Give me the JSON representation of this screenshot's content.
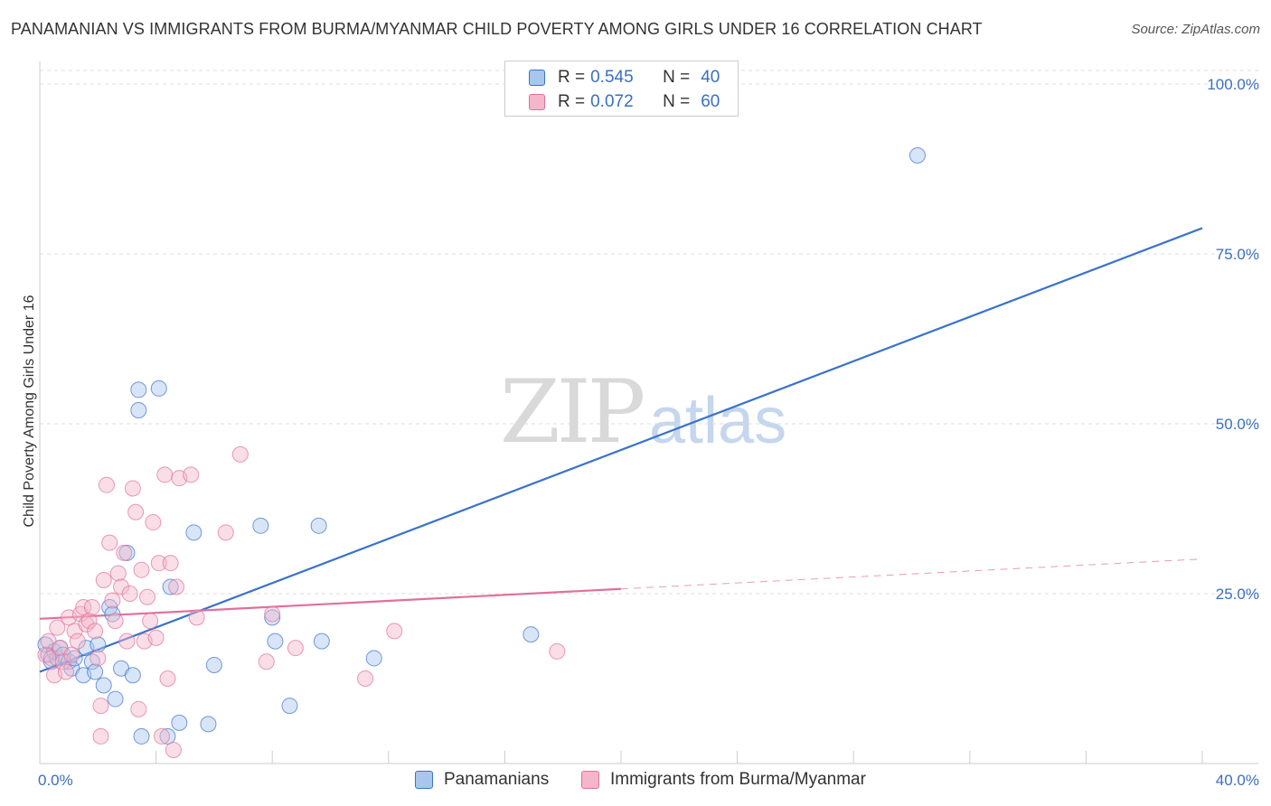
{
  "title": "PANAMANIAN VS IMMIGRANTS FROM BURMA/MYANMAR CHILD POVERTY AMONG GIRLS UNDER 16 CORRELATION CHART",
  "source": "Source: ZipAtlas.com",
  "watermark": {
    "zip": "ZIP",
    "atlas": "atlas"
  },
  "colors": {
    "blue": "#3a72cc",
    "blue_fill": "#a9c6ee",
    "pink": "#e0709a",
    "pink_fill": "#f4b6ca",
    "tick": "#3a6fc0"
  },
  "legend": {
    "r_label": "R =",
    "n_label": "N =",
    "rows": [
      {
        "r": "0.545",
        "n": "40",
        "series": "blue"
      },
      {
        "r": "0.072",
        "n": "60",
        "series": "pink"
      }
    ]
  },
  "bottom_legend": [
    {
      "label": "Panamanians",
      "series": "blue"
    },
    {
      "label": "Immigrants from Burma/Myanmar",
      "series": "pink"
    }
  ],
  "chart_data": {
    "type": "scatter",
    "title": "PANAMANIAN VS IMMIGRANTS FROM BURMA/MYANMAR CHILD POVERTY AMONG GIRLS UNDER 16 CORRELATION CHART",
    "xlabel": "",
    "ylabel": "Child Poverty Among Girls Under 16",
    "xlim": [
      0,
      40
    ],
    "ylim": [
      0,
      102
    ],
    "x_ticks": [
      0,
      40
    ],
    "x_tick_labels": [
      "0.0%",
      "40.0%"
    ],
    "y_ticks": [
      25,
      50,
      75,
      100
    ],
    "y_tick_labels": [
      "25.0%",
      "50.0%",
      "75.0%",
      "100.0%"
    ],
    "grid": true,
    "series": [
      {
        "name": "Panamanians",
        "color": "blue",
        "r": 0.545,
        "n": 40,
        "trend": {
          "x": [
            0,
            40
          ],
          "y": [
            13.5,
            78.8
          ],
          "dashed_from": null
        },
        "points": [
          [
            0.2,
            17.5
          ],
          [
            0.3,
            16.0
          ],
          [
            0.4,
            15.0
          ],
          [
            0.5,
            16.5
          ],
          [
            0.6,
            15.5
          ],
          [
            0.7,
            17.0
          ],
          [
            0.8,
            16.0
          ],
          [
            1.0,
            15.0
          ],
          [
            1.1,
            14.0
          ],
          [
            1.2,
            15.5
          ],
          [
            1.5,
            13.0
          ],
          [
            1.6,
            17.0
          ],
          [
            1.8,
            15.0
          ],
          [
            1.9,
            13.5
          ],
          [
            2.0,
            17.5
          ],
          [
            2.2,
            11.5
          ],
          [
            2.4,
            23.0
          ],
          [
            2.5,
            22.0
          ],
          [
            2.6,
            9.5
          ],
          [
            2.8,
            14.0
          ],
          [
            3.0,
            31.0
          ],
          [
            3.2,
            13.0
          ],
          [
            3.4,
            55.0
          ],
          [
            3.4,
            52.0
          ],
          [
            3.5,
            4.0
          ],
          [
            4.1,
            55.2
          ],
          [
            4.4,
            4.0
          ],
          [
            4.5,
            26.0
          ],
          [
            4.8,
            6.0
          ],
          [
            5.3,
            34.0
          ],
          [
            5.8,
            5.8
          ],
          [
            6.0,
            14.5
          ],
          [
            7.6,
            35.0
          ],
          [
            8.0,
            21.5
          ],
          [
            8.1,
            18.0
          ],
          [
            8.6,
            8.5
          ],
          [
            9.6,
            35.0
          ],
          [
            9.7,
            18.0
          ],
          [
            11.5,
            15.5
          ],
          [
            16.9,
            19.0
          ],
          [
            30.2,
            89.5
          ]
        ]
      },
      {
        "name": "Immigrants from Burma/Myanmar",
        "color": "pink",
        "r": 0.072,
        "n": 60,
        "trend": {
          "x": [
            0,
            40
          ],
          "y": [
            21.3,
            30.1
          ],
          "dashed_from": 20
        },
        "points": [
          [
            0.2,
            16.0
          ],
          [
            0.3,
            18.0
          ],
          [
            0.4,
            15.5
          ],
          [
            0.5,
            13.0
          ],
          [
            0.6,
            20.0
          ],
          [
            0.7,
            17.0
          ],
          [
            0.8,
            15.0
          ],
          [
            0.9,
            13.5
          ],
          [
            1.0,
            21.5
          ],
          [
            1.1,
            16.0
          ],
          [
            1.2,
            19.5
          ],
          [
            1.3,
            18.0
          ],
          [
            1.4,
            22.0
          ],
          [
            1.5,
            23.0
          ],
          [
            1.6,
            20.5
          ],
          [
            1.7,
            21.0
          ],
          [
            1.8,
            23.0
          ],
          [
            1.9,
            19.5
          ],
          [
            2.0,
            15.5
          ],
          [
            2.1,
            8.5
          ],
          [
            2.1,
            4.0
          ],
          [
            2.2,
            27.0
          ],
          [
            2.3,
            41.0
          ],
          [
            2.4,
            32.5
          ],
          [
            2.5,
            24.0
          ],
          [
            2.6,
            21.0
          ],
          [
            2.7,
            28.0
          ],
          [
            2.8,
            26.0
          ],
          [
            2.9,
            31.0
          ],
          [
            3.0,
            18.0
          ],
          [
            3.1,
            25.0
          ],
          [
            3.2,
            40.5
          ],
          [
            3.3,
            37.0
          ],
          [
            3.4,
            8.0
          ],
          [
            3.5,
            28.5
          ],
          [
            3.6,
            18.0
          ],
          [
            3.7,
            24.5
          ],
          [
            3.8,
            21.0
          ],
          [
            3.9,
            35.5
          ],
          [
            4.0,
            18.5
          ],
          [
            4.1,
            29.5
          ],
          [
            4.2,
            4.0
          ],
          [
            4.3,
            42.5
          ],
          [
            4.4,
            12.5
          ],
          [
            4.5,
            29.5
          ],
          [
            4.6,
            2.0
          ],
          [
            4.7,
            26.0
          ],
          [
            4.8,
            42.0
          ],
          [
            5.2,
            42.5
          ],
          [
            5.4,
            21.5
          ],
          [
            6.4,
            34.0
          ],
          [
            6.9,
            45.5
          ],
          [
            7.8,
            15.0
          ],
          [
            8.0,
            22.0
          ],
          [
            8.8,
            17.0
          ],
          [
            11.2,
            12.5
          ],
          [
            12.2,
            19.5
          ],
          [
            17.8,
            16.5
          ]
        ]
      }
    ]
  }
}
